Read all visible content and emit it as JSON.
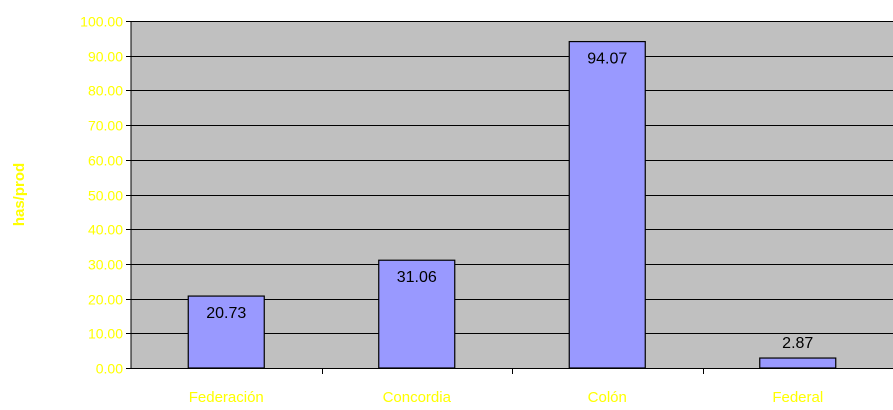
{
  "chart_data": {
    "type": "bar",
    "categories": [
      "Federación",
      "Concordia",
      "Colón",
      "Federal"
    ],
    "values": [
      20.73,
      31.06,
      94.07,
      2.87
    ],
    "data_labels": [
      "20.73",
      "31.06",
      "94.07",
      "2.87"
    ],
    "title": "",
    "xlabel": "",
    "ylabel": "has/prod",
    "ylim": [
      0,
      100
    ],
    "yticks": [
      "0.00",
      "10.00",
      "20.00",
      "30.00",
      "40.00",
      "50.00",
      "60.00",
      "70.00",
      "80.00",
      "90.00",
      "100.00"
    ],
    "grid": true,
    "legend": "none"
  },
  "colors": {
    "plot_background": "#c0c0c0",
    "bar_fill": "#9999ff",
    "bar_stroke": "#000000",
    "label_text": "#ffff00",
    "gridline": "#000000"
  }
}
